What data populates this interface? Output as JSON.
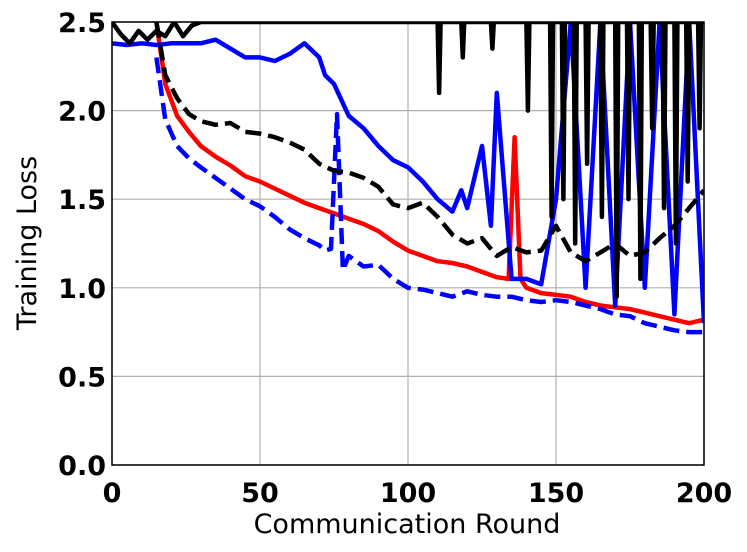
{
  "chart_data": {
    "type": "line",
    "title": "",
    "xlabel": "Communication Round",
    "ylabel": "Training Loss",
    "xlim": [
      0,
      200
    ],
    "ylim": [
      0,
      2.5
    ],
    "xticks": [
      0,
      50,
      100,
      150,
      200
    ],
    "yticks": [
      0.0,
      0.5,
      1.0,
      1.5,
      2.0,
      2.5
    ],
    "xtick_labels": [
      "0",
      "50",
      "100",
      "150",
      "200"
    ],
    "ytick_labels": [
      "0.0",
      "0.5",
      "1.0",
      "1.5",
      "2.0",
      "2.5"
    ],
    "grid": true,
    "legend": null,
    "series": [
      {
        "color": "#ff0000",
        "style": "solid",
        "x": [
          15,
          18,
          22,
          26,
          30,
          35,
          40,
          45,
          50,
          55,
          60,
          65,
          70,
          75,
          80,
          85,
          90,
          95,
          100,
          105,
          110,
          115,
          120,
          125,
          130,
          134,
          136,
          138,
          140,
          145,
          150,
          155,
          160,
          165,
          170,
          175,
          180,
          185,
          190,
          195,
          200
        ],
        "y": [
          2.5,
          2.15,
          1.97,
          1.88,
          1.8,
          1.74,
          1.69,
          1.63,
          1.6,
          1.56,
          1.52,
          1.48,
          1.45,
          1.42,
          1.39,
          1.36,
          1.32,
          1.26,
          1.21,
          1.18,
          1.15,
          1.14,
          1.12,
          1.09,
          1.06,
          1.05,
          1.85,
          1.05,
          1.0,
          0.97,
          0.96,
          0.95,
          0.92,
          0.9,
          0.89,
          0.88,
          0.86,
          0.84,
          0.82,
          0.8,
          0.82
        ]
      },
      {
        "color": "#0000ff",
        "style": "solid",
        "x": [
          0,
          5,
          10,
          15,
          20,
          25,
          30,
          35,
          40,
          45,
          50,
          55,
          60,
          65,
          70,
          72,
          75,
          80,
          85,
          90,
          95,
          100,
          105,
          110,
          115,
          118,
          120,
          125,
          128,
          130,
          135,
          140,
          145,
          150,
          155,
          160,
          165,
          170,
          175,
          180,
          185,
          190,
          195,
          200
        ],
        "y": [
          2.38,
          2.37,
          2.38,
          2.37,
          2.38,
          2.38,
          2.38,
          2.4,
          2.35,
          2.3,
          2.3,
          2.28,
          2.32,
          2.38,
          2.3,
          2.2,
          2.15,
          1.97,
          1.9,
          1.8,
          1.72,
          1.68,
          1.6,
          1.5,
          1.43,
          1.55,
          1.45,
          1.8,
          1.35,
          2.1,
          1.05,
          1.05,
          1.02,
          1.5,
          2.5,
          1.0,
          2.5,
          0.9,
          2.5,
          1.0,
          2.5,
          0.85,
          2.5,
          0.8
        ]
      },
      {
        "color": "#0000ff",
        "style": "dashed",
        "x": [
          15,
          18,
          22,
          26,
          30,
          35,
          40,
          45,
          50,
          55,
          60,
          65,
          70,
          72,
          74,
          76,
          78,
          80,
          85,
          90,
          95,
          100,
          105,
          110,
          115,
          120,
          125,
          130,
          135,
          140,
          145,
          150,
          155,
          160,
          165,
          170,
          175,
          180,
          185,
          190,
          195,
          200
        ],
        "y": [
          2.3,
          1.95,
          1.8,
          1.73,
          1.68,
          1.62,
          1.56,
          1.5,
          1.46,
          1.4,
          1.33,
          1.28,
          1.24,
          1.21,
          1.22,
          1.98,
          1.1,
          1.18,
          1.12,
          1.13,
          1.05,
          1.0,
          0.99,
          0.97,
          0.95,
          0.98,
          0.96,
          0.95,
          0.95,
          0.93,
          0.92,
          0.93,
          0.92,
          0.9,
          0.88,
          0.85,
          0.84,
          0.8,
          0.78,
          0.76,
          0.75,
          0.75
        ]
      },
      {
        "color": "#000000",
        "style": "solid",
        "x": [
          0,
          3,
          6,
          9,
          12,
          15,
          18,
          21,
          24,
          27,
          30,
          110,
          110.5,
          111,
          112,
          118,
          118.5,
          119,
          128,
          128.5,
          129,
          140,
          140.5,
          141,
          148,
          148.5,
          149,
          152,
          152.5,
          153,
          156,
          156.5,
          157,
          160,
          160.5,
          161,
          165,
          165.5,
          166,
          170,
          170.5,
          171,
          174,
          174.5,
          175,
          178,
          178.5,
          179,
          182,
          182.5,
          183,
          186,
          186.5,
          187,
          190,
          190.5,
          191,
          194,
          194.5,
          195,
          198,
          198.5,
          199,
          200
        ],
        "y": [
          2.5,
          2.43,
          2.38,
          2.45,
          2.4,
          2.45,
          2.42,
          2.5,
          2.42,
          2.48,
          2.5,
          2.5,
          2.1,
          2.5,
          2.5,
          2.5,
          2.3,
          2.5,
          2.5,
          2.35,
          2.5,
          2.5,
          2.0,
          2.5,
          2.5,
          1.4,
          2.5,
          2.5,
          1.5,
          2.5,
          2.5,
          1.25,
          2.5,
          2.5,
          1.7,
          2.5,
          2.5,
          1.4,
          2.5,
          2.5,
          0.95,
          2.5,
          2.5,
          1.5,
          2.5,
          2.5,
          1.05,
          2.5,
          2.5,
          1.9,
          2.5,
          2.5,
          1.45,
          2.5,
          2.5,
          1.25,
          2.5,
          2.5,
          1.6,
          2.5,
          2.5,
          1.9,
          2.5,
          2.5
        ]
      },
      {
        "color": "#000000",
        "style": "dashed",
        "x": [
          15,
          18,
          22,
          26,
          30,
          35,
          40,
          45,
          50,
          55,
          60,
          65,
          70,
          75,
          80,
          85,
          90,
          95,
          100,
          105,
          110,
          115,
          120,
          125,
          130,
          135,
          140,
          145,
          150,
          155,
          160,
          165,
          170,
          175,
          180,
          185,
          190,
          195,
          200
        ],
        "y": [
          2.5,
          2.2,
          2.07,
          1.98,
          1.94,
          1.92,
          1.93,
          1.88,
          1.87,
          1.85,
          1.82,
          1.78,
          1.7,
          1.66,
          1.65,
          1.62,
          1.57,
          1.47,
          1.45,
          1.48,
          1.4,
          1.3,
          1.25,
          1.28,
          1.18,
          1.23,
          1.2,
          1.21,
          1.35,
          1.2,
          1.15,
          1.2,
          1.25,
          1.18,
          1.2,
          1.28,
          1.35,
          1.45,
          1.55
        ]
      }
    ]
  }
}
